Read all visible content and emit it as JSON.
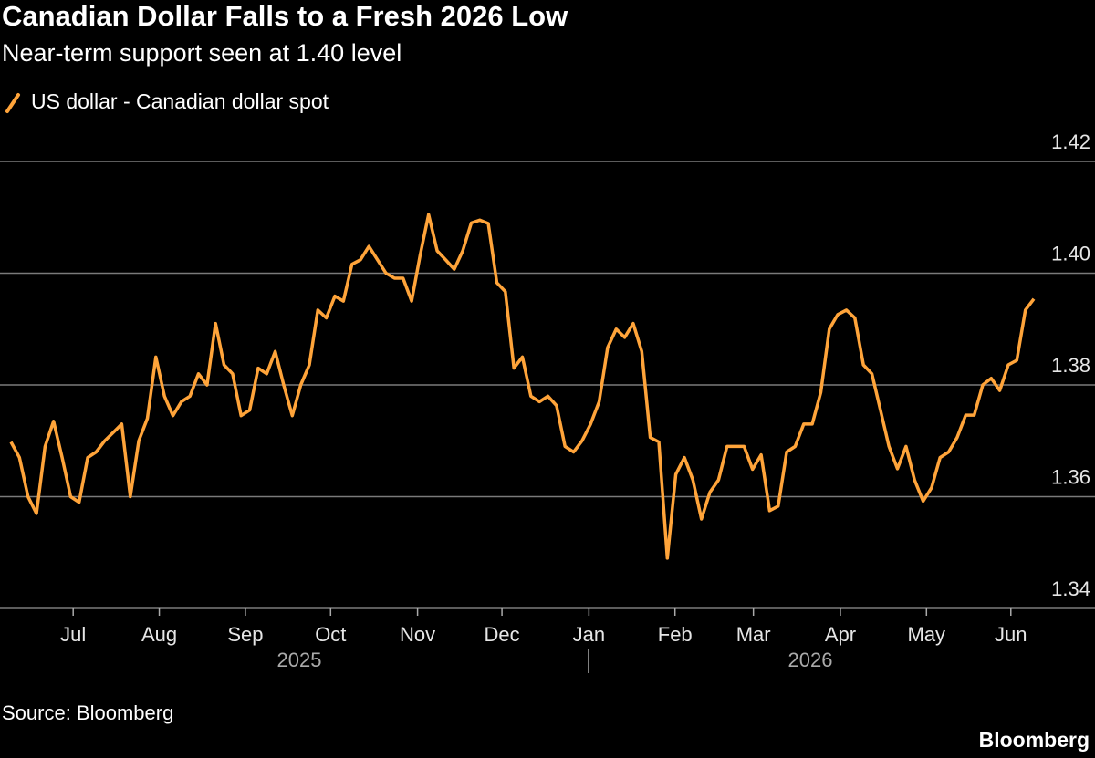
{
  "chart_data": {
    "type": "line",
    "title": "Canadian Dollar Falls to a Fresh 2026 Low",
    "subtitle": "Near-term support seen at 1.40 level",
    "source": "Source: Bloomberg",
    "brand": "Bloomberg",
    "x_group_labels": [
      "2025",
      "2026"
    ],
    "series": [
      {
        "name": "US dollar - Canadian dollar spot",
        "color": "#ffa43a",
        "values": [
          1.3698,
          1.367,
          1.36,
          1.357,
          1.369,
          1.3735,
          1.367,
          1.36,
          1.359,
          1.367,
          1.368,
          1.37,
          1.3715,
          1.373,
          1.36,
          1.37,
          1.374,
          1.385,
          1.378,
          1.3745,
          1.377,
          1.378,
          1.382,
          1.38,
          1.391,
          1.3836,
          1.382,
          1.3745,
          1.3755,
          1.383,
          1.382,
          1.386,
          1.38,
          1.3745,
          1.38,
          1.3836,
          1.3934,
          1.392,
          1.3959,
          1.395,
          1.4016,
          1.4024,
          1.4048,
          1.4024,
          1.4,
          1.3991,
          1.3991,
          1.395,
          1.4032,
          1.4105,
          1.404,
          1.4024,
          1.4007,
          1.404,
          1.409,
          1.4095,
          1.4089,
          1.3983,
          1.3967,
          1.383,
          1.385,
          1.378,
          1.377,
          1.378,
          1.3763,
          1.369,
          1.368,
          1.37,
          1.373,
          1.377,
          1.3867,
          1.39,
          1.3885,
          1.391,
          1.386,
          1.3706,
          1.3698,
          1.349,
          1.364,
          1.367,
          1.363,
          1.356,
          1.3608,
          1.363,
          1.369,
          1.369,
          1.369,
          1.3649,
          1.3675,
          1.3575,
          1.3583,
          1.368,
          1.369,
          1.373,
          1.373,
          1.3787,
          1.39,
          1.3926,
          1.3934,
          1.392,
          1.3836,
          1.382,
          1.3755,
          1.369,
          1.365,
          1.369,
          1.363,
          1.3592,
          1.3616,
          1.367,
          1.368,
          1.3706,
          1.3746,
          1.3746,
          1.38,
          1.3812,
          1.379,
          1.3836,
          1.3844,
          1.3934,
          1.3954
        ]
      }
    ],
    "xlim": [
      0,
      120
    ],
    "xticks": [
      {
        "value": 7.3,
        "label": "Jul"
      },
      {
        "value": 17.4,
        "label": "Aug"
      },
      {
        "value": 27.5,
        "label": "Sep"
      },
      {
        "value": 37.5,
        "label": "Oct"
      },
      {
        "value": 47.7,
        "label": "Nov"
      },
      {
        "value": 57.6,
        "label": "Dec"
      },
      {
        "value": 67.8,
        "label": "Jan"
      },
      {
        "value": 77.9,
        "label": "Feb"
      },
      {
        "value": 87.1,
        "label": "Mar"
      },
      {
        "value": 97.3,
        "label": "Apr"
      },
      {
        "value": 107.4,
        "label": "May"
      },
      {
        "value": 117.3,
        "label": "Jun"
      }
    ],
    "ylim": [
      1.34,
      1.42
    ],
    "yticks": [
      1.34,
      1.36,
      1.38,
      {
        "value": 1.4,
        "label": "1.40"
      },
      1.42
    ],
    "grid": true
  }
}
